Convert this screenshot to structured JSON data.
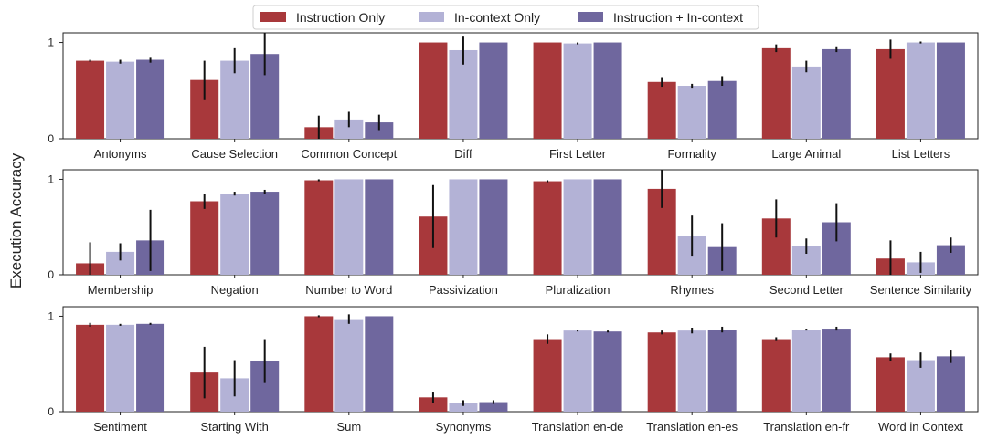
{
  "chart_data": {
    "type": "bar",
    "ylabel": "Execution Accuracy",
    "ylim": [
      0,
      1.1
    ],
    "yticks": [
      0,
      1
    ],
    "legend": {
      "placement": "top-center"
    },
    "colors": {
      "Instruction Only": "#a8383b",
      "In-context Only": "#b3b2d6",
      "Instruction + In-context": "#6f679e"
    },
    "series_names": [
      "Instruction Only",
      "In-context Only",
      "Instruction + In-context"
    ],
    "panels": [
      {
        "tasks": [
          {
            "name": "Antonyms",
            "values": [
              0.81,
              0.8,
              0.82
            ],
            "errors": [
              0.01,
              0.02,
              0.03
            ]
          },
          {
            "name": "Cause Selection",
            "values": [
              0.61,
              0.81,
              0.88
            ],
            "errors": [
              0.2,
              0.13,
              0.22
            ]
          },
          {
            "name": "Common Concept",
            "values": [
              0.12,
              0.2,
              0.17
            ],
            "errors": [
              0.12,
              0.08,
              0.08
            ]
          },
          {
            "name": "Diff",
            "values": [
              1.0,
              0.92,
              1.0
            ],
            "errors": [
              0.0,
              0.15,
              0.0
            ]
          },
          {
            "name": "First Letter",
            "values": [
              1.0,
              0.99,
              1.0
            ],
            "errors": [
              0.0,
              0.01,
              0.0
            ]
          },
          {
            "name": "Formality",
            "values": [
              0.59,
              0.55,
              0.6
            ],
            "errors": [
              0.05,
              0.02,
              0.05
            ]
          },
          {
            "name": "Large Animal",
            "values": [
              0.94,
              0.75,
              0.93
            ],
            "errors": [
              0.04,
              0.06,
              0.03
            ]
          },
          {
            "name": "List Letters",
            "values": [
              0.93,
              1.0,
              1.0
            ],
            "errors": [
              0.1,
              0.01,
              0.0
            ]
          }
        ]
      },
      {
        "tasks": [
          {
            "name": "Membership",
            "values": [
              0.12,
              0.24,
              0.36
            ],
            "errors": [
              0.22,
              0.09,
              0.32
            ]
          },
          {
            "name": "Negation",
            "values": [
              0.77,
              0.85,
              0.87
            ],
            "errors": [
              0.08,
              0.02,
              0.02
            ]
          },
          {
            "name": "Number to Word",
            "values": [
              0.99,
              1.0,
              1.0
            ],
            "errors": [
              0.01,
              0.0,
              0.0
            ]
          },
          {
            "name": "Passivization",
            "values": [
              0.61,
              1.0,
              1.0
            ],
            "errors": [
              0.33,
              0.0,
              0.0
            ]
          },
          {
            "name": "Pluralization",
            "values": [
              0.98,
              1.0,
              1.0
            ],
            "errors": [
              0.01,
              0.0,
              0.0
            ]
          },
          {
            "name": "Rhymes",
            "values": [
              0.9,
              0.41,
              0.29
            ],
            "errors": [
              0.2,
              0.21,
              0.25
            ]
          },
          {
            "name": "Second Letter",
            "values": [
              0.59,
              0.3,
              0.55
            ],
            "errors": [
              0.2,
              0.08,
              0.2
            ]
          },
          {
            "name": "Sentence Similarity",
            "values": [
              0.17,
              0.13,
              0.31
            ],
            "errors": [
              0.19,
              0.11,
              0.08
            ]
          }
        ]
      },
      {
        "tasks": [
          {
            "name": "Sentiment",
            "values": [
              0.91,
              0.91,
              0.92
            ],
            "errors": [
              0.02,
              0.01,
              0.01
            ]
          },
          {
            "name": "Starting With",
            "values": [
              0.41,
              0.35,
              0.53
            ],
            "errors": [
              0.27,
              0.19,
              0.23
            ]
          },
          {
            "name": "Sum",
            "values": [
              1.0,
              0.97,
              1.0
            ],
            "errors": [
              0.01,
              0.05,
              0.0
            ]
          },
          {
            "name": "Synonyms",
            "values": [
              0.15,
              0.09,
              0.1
            ],
            "errors": [
              0.06,
              0.03,
              0.02
            ]
          },
          {
            "name": "Translation en-de",
            "values": [
              0.76,
              0.85,
              0.84
            ],
            "errors": [
              0.05,
              0.01,
              0.01
            ]
          },
          {
            "name": "Translation en-es",
            "values": [
              0.83,
              0.85,
              0.86
            ],
            "errors": [
              0.02,
              0.03,
              0.03
            ]
          },
          {
            "name": "Translation en-fr",
            "values": [
              0.76,
              0.86,
              0.87
            ],
            "errors": [
              0.02,
              0.01,
              0.02
            ]
          },
          {
            "name": "Word in Context",
            "values": [
              0.57,
              0.54,
              0.58
            ],
            "errors": [
              0.04,
              0.08,
              0.07
            ]
          }
        ]
      }
    ]
  }
}
